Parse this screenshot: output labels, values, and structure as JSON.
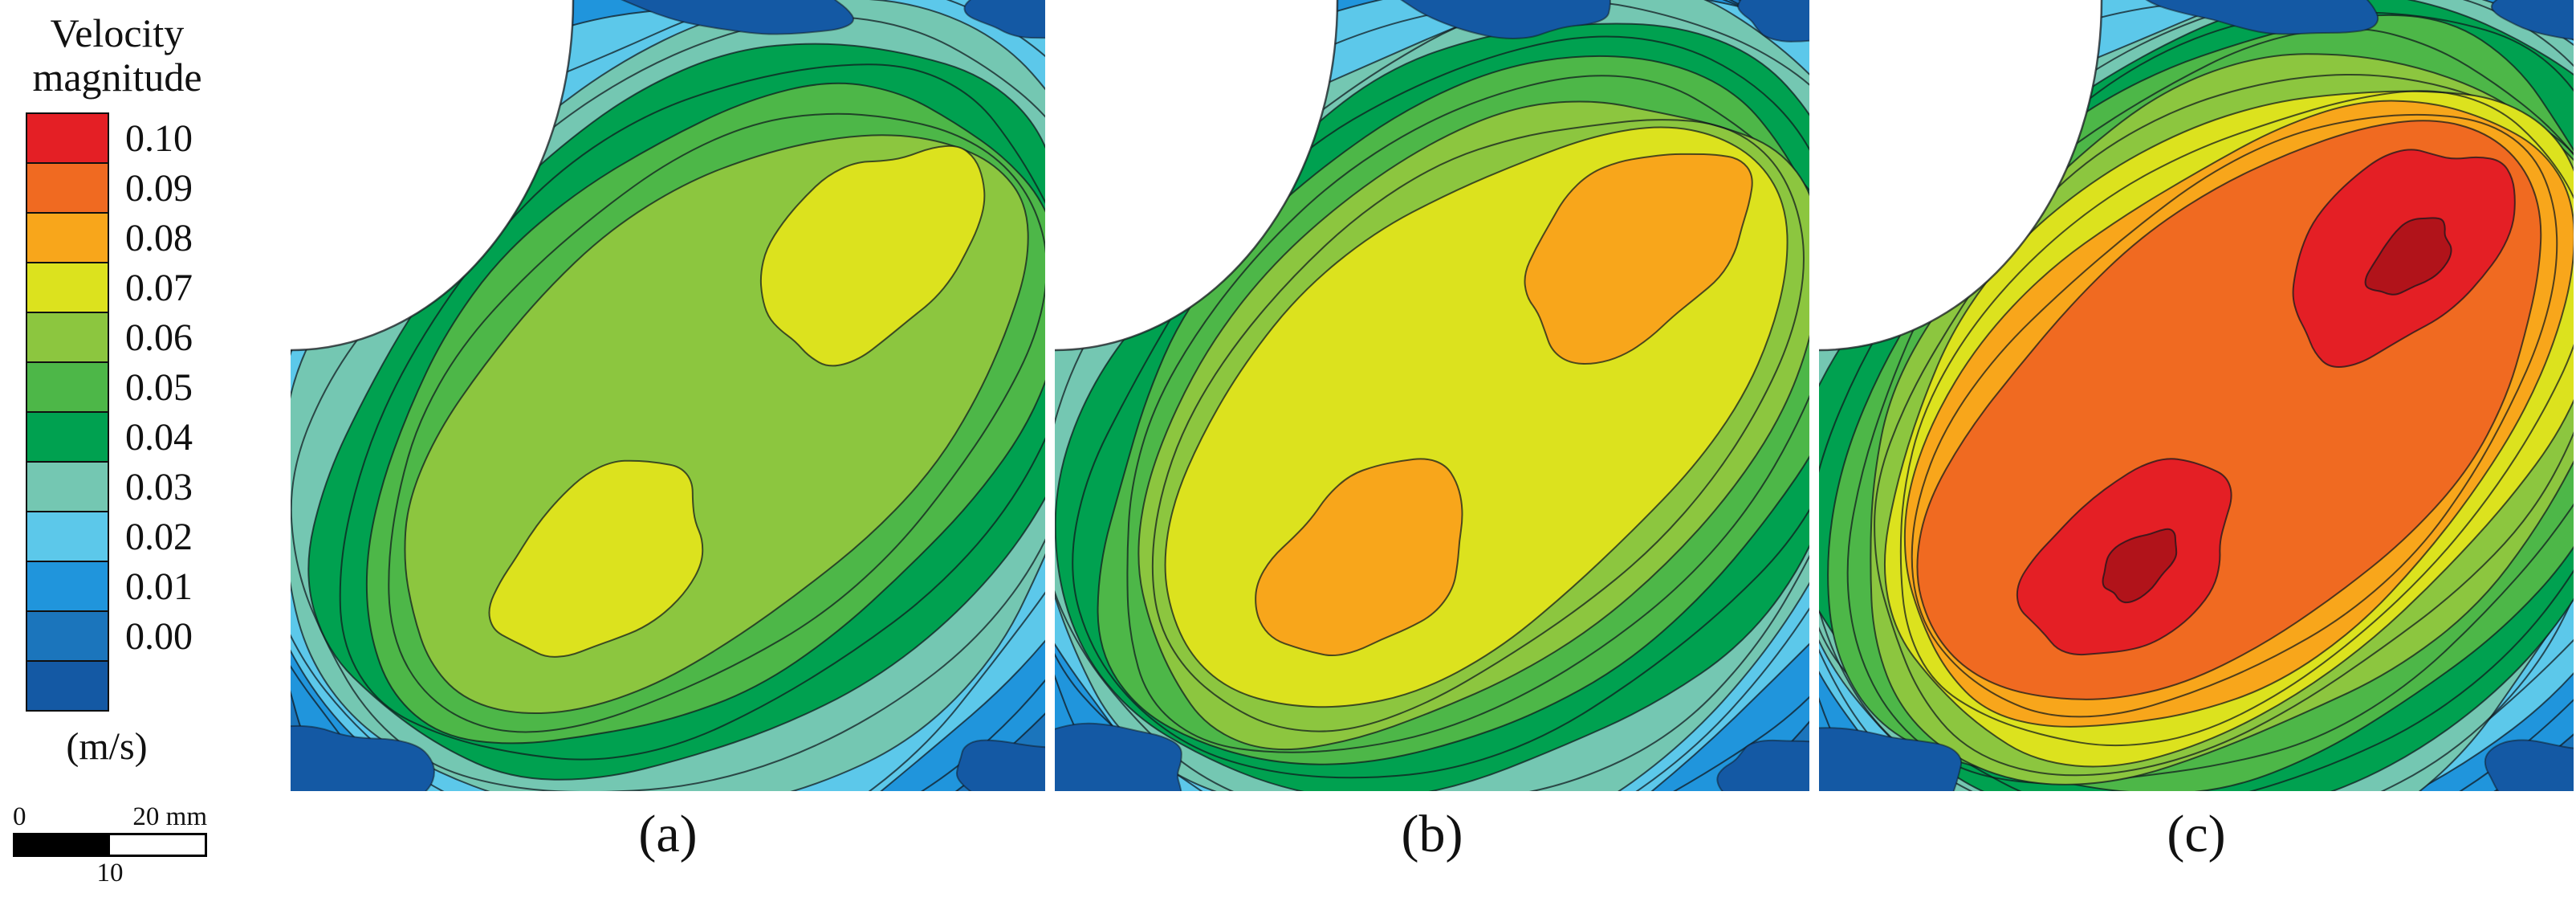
{
  "figure": {
    "legend": {
      "title_lines": [
        "Velocity",
        "magnitude"
      ],
      "unit": "(m/s)",
      "tick_labels": [
        "0.10",
        "0.09",
        "0.08",
        "0.07",
        "0.06",
        "0.05",
        "0.04",
        "0.03",
        "0.02",
        "0.01",
        "0.00"
      ],
      "band_colors": [
        "#e41f25",
        "#f06a21",
        "#f8a61b",
        "#dce21e",
        "#8cc63f",
        "#4db748",
        "#00a150",
        "#74c7b2",
        "#5cc8ea",
        "#2095dc",
        "#1b75bc",
        "#1459a4"
      ]
    },
    "scale_bar": {
      "start_label": "0",
      "end_label": "20 mm",
      "mid_label": "10"
    },
    "panel_labels": [
      "(a)",
      "(b)",
      "(c)"
    ]
  },
  "chart_data": {
    "type": "heatmap",
    "subtype": "filled contour plot (CFD velocity field), 3 panels",
    "title": "Velocity magnitude contours",
    "variable": "Velocity magnitude",
    "unit": "m/s",
    "contour_levels": [
      0.0,
      0.01,
      0.02,
      0.03,
      0.04,
      0.05,
      0.06,
      0.07,
      0.08,
      0.09,
      0.1
    ],
    "colormap": "rainbow: dark blue (0.00) through cyan, green, yellow, orange to red (0.10)",
    "scale_bar": {
      "unit": "mm",
      "ticks": [
        0,
        10,
        20
      ]
    },
    "geometry": "square domain with white quarter-circle solid (cylinder) at top-left corner; high-velocity band runs diagonally from lower-left to upper-right with two local maxima (upper-right and lower-center); near-zero velocity (blue) along edges and around the cylinder",
    "panels": [
      {
        "label": "(a)",
        "peak_value": 0.078,
        "peak_band": "0.07-0.08 m/s (yellow-green cores in green band)",
        "min_value": 0.0
      },
      {
        "label": "(b)",
        "peak_value": 0.088,
        "peak_band": "0.08-0.09 m/s (orange cores in yellow band)",
        "min_value": 0.0
      },
      {
        "label": "(c)",
        "peak_value": 0.105,
        "peak_band": "above 0.10 m/s (red cores in orange band)",
        "min_value": 0.0,
        "core_color": "#b1131a"
      }
    ]
  }
}
